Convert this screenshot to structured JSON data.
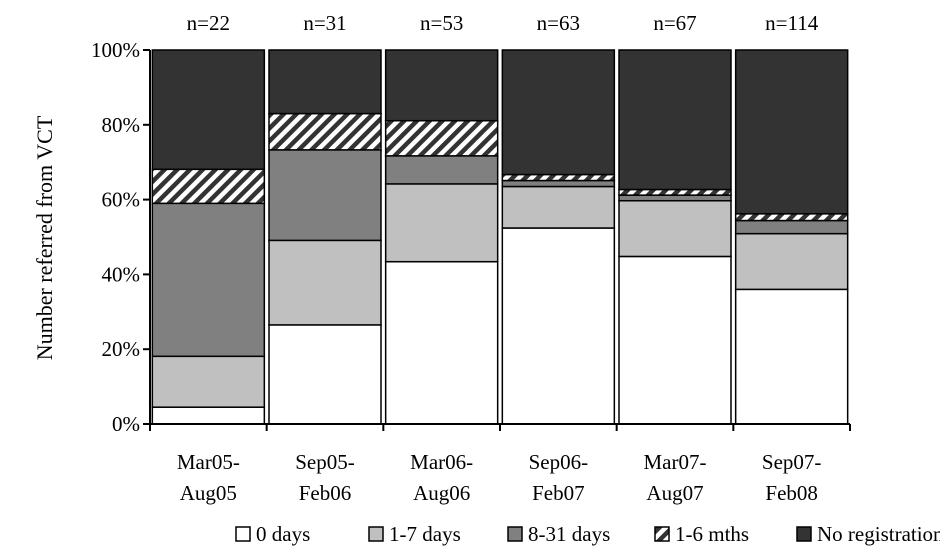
{
  "chart_data": {
    "type": "bar",
    "stacked": true,
    "normalized": true,
    "title": "",
    "xlabel": "",
    "ylabel": "Number referred from VCT",
    "ylim": [
      0,
      100
    ],
    "yticks": [
      "0%",
      "20%",
      "40%",
      "60%",
      "80%",
      "100%"
    ],
    "grid": false,
    "legend_position": "bottom",
    "categories": [
      [
        "Mar05-",
        "Aug05"
      ],
      [
        "Sep05-",
        "Feb06"
      ],
      [
        "Mar06-",
        "Aug06"
      ],
      [
        "Sep06-",
        "Feb07"
      ],
      [
        "Mar07-",
        "Aug07"
      ],
      [
        "Sep07-",
        "Feb08"
      ]
    ],
    "n_labels": [
      "n=22",
      "n=31",
      "n=53",
      "n=63",
      "n=67",
      "n=114"
    ],
    "series": [
      {
        "name": "0 days",
        "color": "#ffffff",
        "pattern": "none",
        "values": [
          4.5,
          26.5,
          43.4,
          52.4,
          44.8,
          36.0
        ]
      },
      {
        "name": "1-7 days",
        "color": "#c0c0c0",
        "pattern": "none",
        "values": [
          13.6,
          22.6,
          20.8,
          11.1,
          14.9,
          14.9
        ]
      },
      {
        "name": "8-31 days",
        "color": "#808080",
        "pattern": "none",
        "values": [
          40.9,
          24.2,
          7.5,
          1.6,
          1.5,
          3.5
        ]
      },
      {
        "name": "1-6 mths",
        "color": "#ffffff",
        "pattern": "diagonal-hatch",
        "values": [
          9.1,
          9.7,
          9.4,
          1.6,
          1.5,
          1.8
        ]
      },
      {
        "name": "No registration",
        "color": "#333333",
        "pattern": "none",
        "values": [
          31.9,
          17.0,
          18.9,
          33.3,
          37.3,
          43.8
        ]
      }
    ]
  }
}
